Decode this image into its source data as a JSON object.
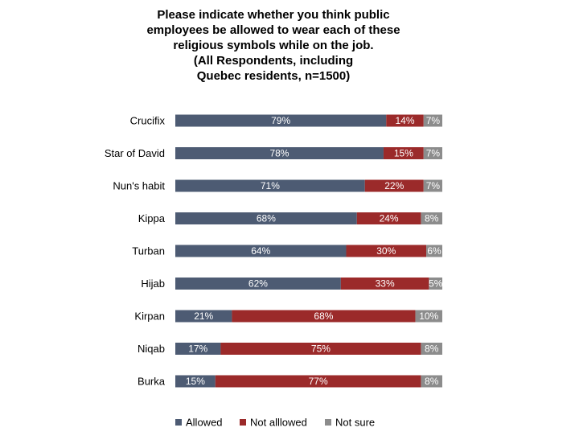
{
  "chart_data": {
    "type": "bar",
    "orientation": "horizontal",
    "stacked": true,
    "percent_stacked": true,
    "title_lines": [
      "Please indicate whether you think public",
      "employees be allowed to wear each of these",
      "religious symbols while on the job.",
      "(All Respondents, including",
      "Quebec residents, n=1500)"
    ],
    "categories": [
      "Crucifix",
      "Star of David",
      "Nun's habit",
      "Kippa",
      "Turban",
      "Hijab",
      "Kirpan",
      "Niqab",
      "Burka"
    ],
    "series": [
      {
        "name": "Allowed",
        "color": "#4d5b73",
        "values": [
          79,
          78,
          71,
          68,
          64,
          62,
          21,
          17,
          15
        ]
      },
      {
        "name": "Not alllowed",
        "color": "#9b2a2a",
        "values": [
          14,
          15,
          22,
          24,
          30,
          33,
          68,
          75,
          77
        ]
      },
      {
        "name": "Not sure",
        "color": "#8c8c8c",
        "values": [
          7,
          7,
          7,
          8,
          6,
          5,
          10,
          8,
          8
        ]
      }
    ],
    "value_suffix": "%",
    "legend_position": "bottom",
    "xlabel": "",
    "ylabel": "",
    "grid": false
  }
}
